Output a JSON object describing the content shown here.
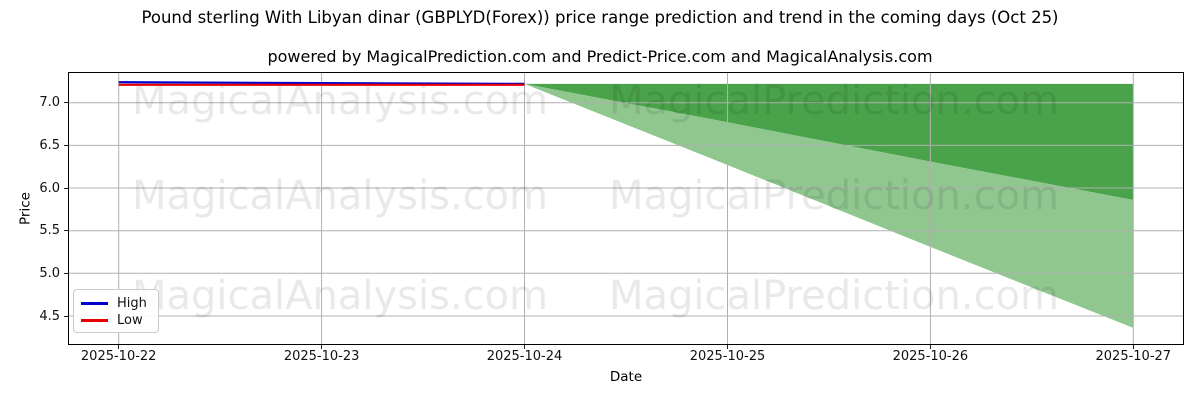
{
  "header": {
    "title": "Pound sterling With Libyan dinar (GBPLYD(Forex)) price range prediction and trend in the coming days (Oct 25)",
    "subtitle": "powered by MagicalPrediction.com and Predict-Price.com and MagicalAnalysis.com"
  },
  "chart_data": {
    "type": "line",
    "title": "Pound sterling With Libyan dinar (GBPLYD(Forex)) price range prediction and trend in the coming days (Oct 25)",
    "subtitle": "powered by MagicalPrediction.com and Predict-Price.com and MagicalAnalysis.com",
    "xlabel": "Date",
    "ylabel": "Price",
    "x_categories": [
      "2025-10-22",
      "2025-10-23",
      "2025-10-24",
      "2025-10-25",
      "2025-10-26",
      "2025-10-27"
    ],
    "y_ticks": [
      4.5,
      5.0,
      5.5,
      6.0,
      6.5,
      7.0
    ],
    "ylim": [
      4.16,
      7.36
    ],
    "xlim": [
      -0.25,
      5.25
    ],
    "grid": true,
    "grid_color": "#b0b0b0",
    "spine_color": "#000000",
    "legend_position": "lower left",
    "series": [
      {
        "name": "High",
        "color": "#0000cd",
        "x": [
          0,
          1,
          2
        ],
        "values": [
          7.24,
          7.23,
          7.22
        ]
      },
      {
        "name": "Low",
        "color": "#e60000",
        "x": [
          0,
          1,
          2
        ],
        "values": [
          7.21,
          7.21,
          7.21
        ]
      }
    ],
    "bands": [
      {
        "name": "upper-prediction-band",
        "color": "#4aa34a",
        "x": [
          2,
          3,
          4,
          5
        ],
        "top": [
          7.22,
          7.22,
          7.22,
          7.22
        ],
        "bottom": [
          7.22,
          6.77,
          6.31,
          5.86
        ]
      },
      {
        "name": "lower-prediction-band",
        "color": "#8fc78f",
        "x": [
          2,
          3,
          4,
          5
        ],
        "top": [
          7.22,
          6.77,
          6.31,
          5.86
        ],
        "bottom": [
          7.22,
          6.27,
          5.31,
          4.36
        ]
      }
    ],
    "watermark": {
      "left_text": "MagicalAnalysis.com",
      "right_text": "MagicalPrediction.com",
      "rows": 3,
      "alpha": 0.085
    }
  },
  "legend": {
    "items": [
      {
        "label": "High"
      },
      {
        "label": "Low"
      }
    ]
  }
}
